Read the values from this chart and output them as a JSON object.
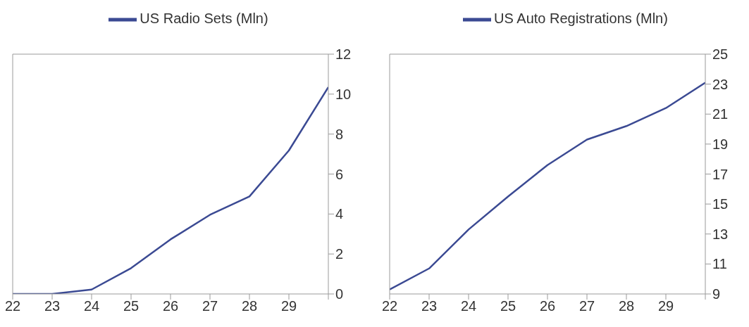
{
  "chart_data": [
    {
      "type": "line",
      "x": [
        22,
        23,
        24,
        25,
        26,
        27,
        28,
        29,
        30
      ],
      "series": [
        {
          "name": "US Radio Sets (Mln)",
          "color": "#3b4a93",
          "values": [
            0,
            0,
            0.22,
            1.29,
            2.73,
            3.96,
            4.88,
            7.18,
            10.35
          ]
        }
      ],
      "xlim": [
        22,
        30
      ],
      "xticks": [
        22,
        23,
        24,
        25,
        26,
        27,
        28,
        29,
        {
          "value": 30,
          "label": null
        }
      ],
      "ylim": [
        0,
        12
      ],
      "yticks": [
        0,
        2,
        4,
        6,
        8,
        10,
        12
      ],
      "grid": false,
      "legend": "top",
      "marker": "none",
      "line_style": "solid"
    },
    {
      "type": "line",
      "x": [
        22,
        23,
        24,
        25,
        26,
        27,
        28,
        29,
        30
      ],
      "series": [
        {
          "name": "US Auto Registrations (Mln)",
          "color": "#3b4a93",
          "values": [
            9.3,
            10.7,
            13.3,
            15.5,
            17.6,
            19.3,
            20.2,
            21.4,
            23.1
          ]
        }
      ],
      "xlim": [
        22,
        30
      ],
      "xticks": [
        22,
        23,
        24,
        25,
        26,
        27,
        28,
        29,
        {
          "value": 30,
          "label": null
        }
      ],
      "ylim": [
        9,
        25
      ],
      "yticks": [
        9,
        11,
        13,
        15,
        17,
        19,
        21,
        23,
        25
      ],
      "grid": false,
      "legend": "top",
      "marker": "none",
      "line_style": "solid"
    }
  ]
}
